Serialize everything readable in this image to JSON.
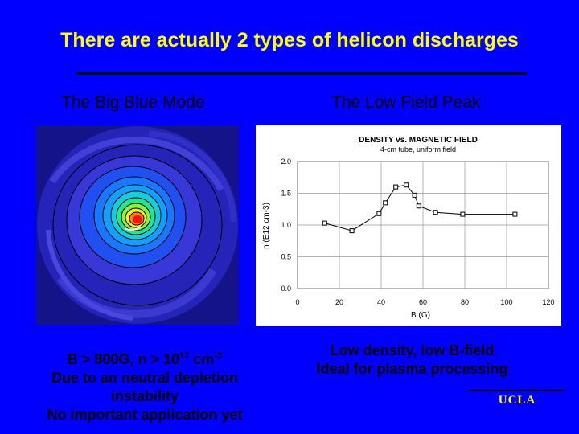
{
  "slide": {
    "title": "There are actually 2 types of helicon discharges",
    "left_heading": "The Big Blue Mode",
    "right_heading": "The Low Field Peak",
    "left_caption": {
      "line1_prefix": "B > 800G,  n > 10",
      "line1_exp1": "13",
      "line1_mid": " cm",
      "line1_exp2": "-3",
      "line2": "Due to an neutral depletion",
      "line3": "instability",
      "line4": "No important application yet"
    },
    "right_caption": {
      "line1": "Low density, low B-field",
      "line2": "Ideal for plasma processing"
    },
    "logo_text": "UCLA"
  },
  "chart_data": {
    "type": "line",
    "title": "DENSITY vs. MAGNETIC FIELD",
    "subtitle": "4-cm tube, uniform field",
    "xlabel": "B (G)",
    "ylabel": "n (E12 cm-3)",
    "xlim": [
      0,
      120
    ],
    "ylim": [
      0,
      2.0
    ],
    "xticks": [
      "0",
      "20",
      "40",
      "60",
      "80",
      "100",
      "120"
    ],
    "yticks": [
      "0.0",
      "0.5",
      "1.0",
      "1.5",
      "2.0"
    ],
    "grid": true,
    "marker": "square",
    "x": [
      13,
      26,
      39,
      42,
      47,
      52,
      56,
      58,
      66,
      79,
      104
    ],
    "y": [
      1.03,
      0.91,
      1.18,
      1.35,
      1.6,
      1.63,
      1.47,
      1.3,
      1.2,
      1.17,
      1.17
    ]
  }
}
